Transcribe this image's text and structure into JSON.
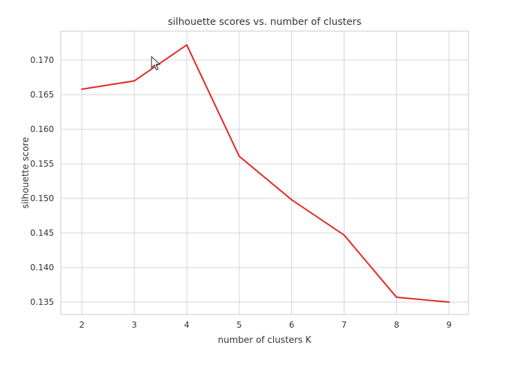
{
  "chart_data": {
    "type": "line",
    "title": "silhouette scores vs. number of clusters",
    "xlabel": "number of clusters K",
    "ylabel": "silhouette score",
    "x": [
      2,
      3,
      4,
      5,
      6,
      7,
      8,
      9
    ],
    "series": [
      {
        "values": [
          0.1658,
          0.167,
          0.1722,
          0.1561,
          0.1498,
          0.1447,
          0.1357,
          0.135
        ]
      }
    ],
    "x_ticks": [
      "2",
      "3",
      "4",
      "5",
      "6",
      "7",
      "8",
      "9"
    ],
    "y_ticks": [
      "0.135",
      "0.140",
      "0.145",
      "0.150",
      "0.155",
      "0.160",
      "0.165",
      "0.170"
    ],
    "xlim": [
      1.6,
      9.37
    ],
    "ylim": [
      0.1332,
      0.1742
    ],
    "grid": true,
    "line_color": "#e03030"
  }
}
